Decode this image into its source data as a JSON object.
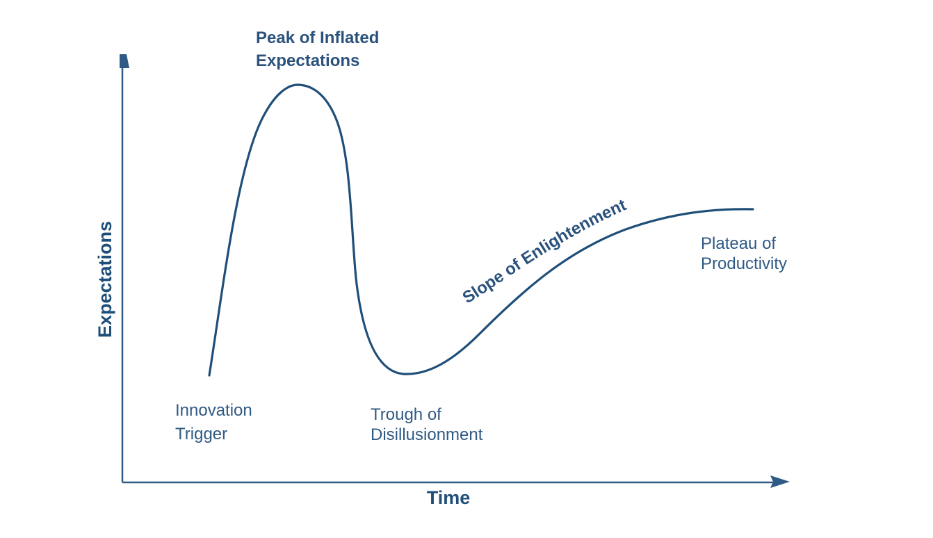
{
  "axes": {
    "x_label": "Time",
    "y_label": "Expectations"
  },
  "phases": [
    {
      "id": "innovation-trigger",
      "lines": [
        "Innovation",
        "Trigger"
      ]
    },
    {
      "id": "peak",
      "lines": [
        "Peak of Inflated",
        "Expectations"
      ]
    },
    {
      "id": "trough",
      "lines": [
        "Trough of",
        "Disillusionment"
      ]
    },
    {
      "id": "slope",
      "lines": [
        "Slope of Enlightenment"
      ]
    },
    {
      "id": "plateau",
      "lines": [
        "Plateau of",
        "Productivity"
      ]
    }
  ],
  "colors": {
    "curve": "#1f4e79",
    "axis": "#2f5a85",
    "text": "#2f5a85"
  }
}
